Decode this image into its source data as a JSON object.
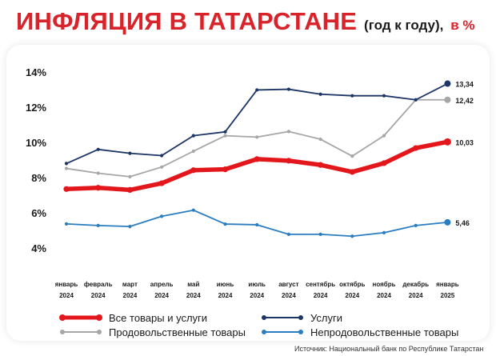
{
  "header": {
    "title": "ИНФЛЯЦИЯ В ТАТАРСТАНЕ",
    "subtitle": "(год к году),",
    "unit": "в %"
  },
  "source": "Источник: Национальный банк по Республике Татарстан",
  "chart_data": {
    "type": "line",
    "title": "ИНФЛЯЦИЯ В ТАТАРСТАНЕ (год к году), в %",
    "xlabel": "",
    "ylabel": "",
    "ylim": [
      4,
      14
    ],
    "yticks": [
      "4%",
      "6%",
      "8%",
      "10%",
      "12%",
      "14%"
    ],
    "grid": false,
    "legend_position": "bottom",
    "categories": [
      [
        "январь",
        "2024"
      ],
      [
        "февраль",
        "2024"
      ],
      [
        "март",
        "2024"
      ],
      [
        "апрель",
        "2024"
      ],
      [
        "май",
        "2024"
      ],
      [
        "июнь",
        "2024"
      ],
      [
        "июль",
        "2024"
      ],
      [
        "август",
        "2024"
      ],
      [
        "сентябрь",
        "2024"
      ],
      [
        "октябрь",
        "2024"
      ],
      [
        "ноябрь",
        "2024"
      ],
      [
        "декабрь",
        "2024"
      ],
      [
        "январь",
        "2025"
      ]
    ],
    "series": [
      {
        "name": "Все товары и услуги",
        "color": "#e3161c",
        "values": [
          7.35,
          7.42,
          7.3,
          7.68,
          8.42,
          8.47,
          9.05,
          8.96,
          8.72,
          8.32,
          8.82,
          9.68,
          10.03
        ],
        "end_label": "10,03"
      },
      {
        "name": "Услуги",
        "color": "#1c3466",
        "values": [
          8.8,
          9.6,
          9.38,
          9.25,
          10.38,
          10.6,
          12.98,
          13.02,
          12.74,
          12.65,
          12.65,
          12.42,
          13.34
        ],
        "end_label": "13,34"
      },
      {
        "name": "Продовольственные товары",
        "color": "#a6a6a6",
        "values": [
          8.52,
          8.25,
          8.05,
          8.6,
          9.5,
          10.38,
          10.3,
          10.62,
          10.18,
          9.22,
          10.38,
          12.42,
          12.42
        ],
        "end_label": "12,42"
      },
      {
        "name": "Непродовольственные товары",
        "color": "#2a7dc0",
        "values": [
          5.37,
          5.28,
          5.22,
          5.8,
          6.15,
          5.36,
          5.32,
          4.78,
          4.78,
          4.67,
          4.87,
          5.28,
          5.46
        ],
        "end_label": "5,46"
      }
    ]
  }
}
